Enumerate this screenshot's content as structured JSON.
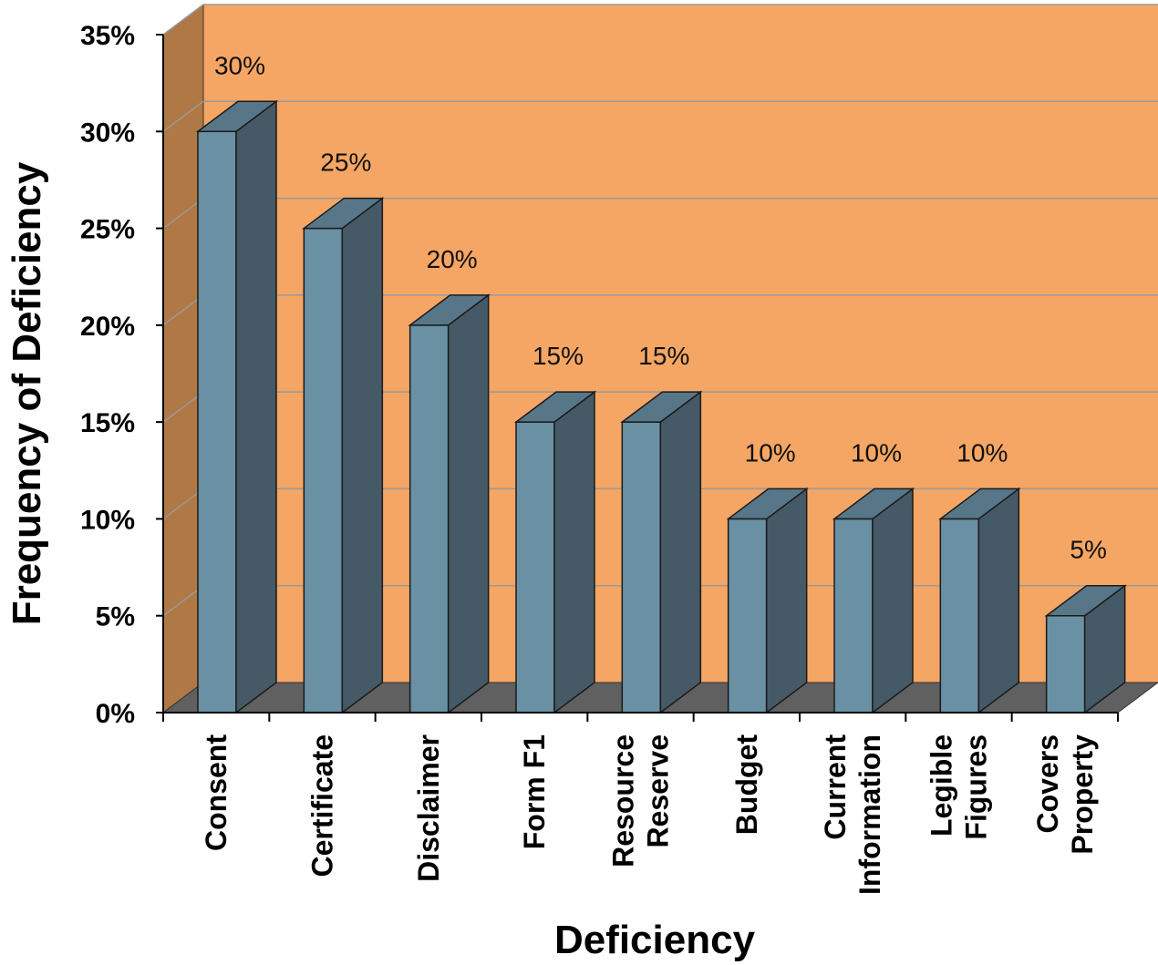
{
  "chart_data": {
    "type": "bar",
    "title": "",
    "xlabel": "Deficiency",
    "ylabel": "Frequency of Deficiency",
    "ylim": [
      0,
      35
    ],
    "yticks": [
      0,
      5,
      10,
      15,
      20,
      25,
      30,
      35
    ],
    "ytick_labels": [
      "0%",
      "5%",
      "10%",
      "15%",
      "20%",
      "25%",
      "30%",
      "35%"
    ],
    "grid": true,
    "categories": [
      [
        "Consent"
      ],
      [
        "Certificate"
      ],
      [
        "Disclaimer"
      ],
      [
        "Form F1"
      ],
      [
        "Resource",
        "Reserve"
      ],
      [
        "Budget"
      ],
      [
        "Current",
        "Information"
      ],
      [
        "Legible",
        "Figures"
      ],
      [
        "Covers",
        "Property"
      ]
    ],
    "values": [
      30,
      25,
      20,
      15,
      15,
      10,
      10,
      10,
      5
    ],
    "data_labels": [
      "30%",
      "25%",
      "20%",
      "15%",
      "15%",
      "10%",
      "10%",
      "10%",
      "5%"
    ],
    "colors": {
      "wall": "#f6a664",
      "side_wall": "#b07845",
      "floor": "#606060",
      "bar_front": "#6a90a4",
      "bar_side": "#455a66",
      "bar_top": "#577789",
      "grid": "#999999"
    }
  }
}
